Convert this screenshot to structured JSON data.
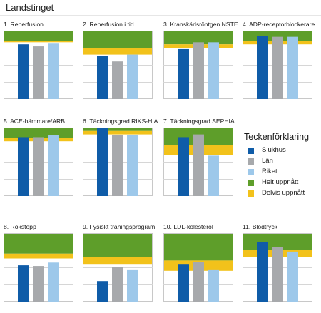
{
  "page": {
    "title": "Landstinget"
  },
  "legend": {
    "title": "Teckenförklaring",
    "items": [
      {
        "label": "Sjukhus",
        "color": "#0f5ca8"
      },
      {
        "label": "Län",
        "color": "#a7a9ac"
      },
      {
        "label": "Riket",
        "color": "#9dc8ea"
      },
      {
        "label": "Helt uppnått",
        "color": "#5e9e2a"
      },
      {
        "label": "Delvis uppnått",
        "color": "#f2c21b"
      }
    ]
  },
  "chart_data": [
    {
      "type": "bar",
      "title": "1. Reperfusion",
      "categories": [
        "Sjukhus",
        "Län",
        "Riket"
      ],
      "values": [
        80,
        77,
        81
      ],
      "ylim": [
        0,
        100
      ],
      "targets": {
        "partial_from": 83,
        "full_from": 85
      }
    },
    {
      "type": "bar",
      "title": "2. Reperfusion i tid",
      "categories": [
        "Sjukhus",
        "Län",
        "Riket"
      ],
      "values": [
        63,
        55,
        65
      ],
      "ylim": [
        0,
        100
      ],
      "targets": {
        "partial_from": 65,
        "full_from": 75
      }
    },
    {
      "type": "bar",
      "title": "3. Kranskärlsröntgen NSTE",
      "categories": [
        "Sjukhus",
        "Län",
        "Riket"
      ],
      "values": [
        73,
        83,
        83
      ],
      "ylim": [
        0,
        100
      ],
      "targets": {
        "partial_from": 75,
        "full_from": 80
      }
    },
    {
      "type": "bar",
      "title": "4. ADP-receptorblockerare",
      "categories": [
        "Sjukhus",
        "Län",
        "Riket"
      ],
      "values": [
        92,
        91,
        91
      ],
      "ylim": [
        0,
        100
      ],
      "targets": {
        "partial_from": 80,
        "full_from": 85
      }
    },
    {
      "type": "bar",
      "title": "5. ACE-hämmare/ARB",
      "categories": [
        "Sjukhus",
        "Län",
        "Riket"
      ],
      "values": [
        86,
        86,
        89
      ],
      "ylim": [
        0,
        100
      ],
      "targets": {
        "partial_from": 80,
        "full_from": 85
      }
    },
    {
      "type": "bar",
      "title": "6. Täckningsgrad RIKS-HIA",
      "categories": [
        "Sjukhus",
        "Län",
        "Riket"
      ],
      "values": [
        100,
        89,
        89
      ],
      "ylim": [
        0,
        100
      ],
      "targets": {
        "partial_from": 90,
        "full_from": 95
      }
    },
    {
      "type": "bar",
      "title": "7. Täckningsgrad SEPHIA",
      "categories": [
        "Sjukhus",
        "Län",
        "Riket"
      ],
      "values": [
        86,
        90,
        59
      ],
      "ylim": [
        0,
        100
      ],
      "targets": {
        "partial_from": 60,
        "full_from": 75
      }
    },
    {
      "type": "bar",
      "title": "8. Rökstopp",
      "categories": [
        "Sjukhus",
        "Län",
        "Riket"
      ],
      "values": [
        53,
        52,
        57
      ],
      "ylim": [
        0,
        100
      ],
      "targets": {
        "partial_from": 63,
        "full_from": 70
      }
    },
    {
      "type": "bar",
      "title": "9. Fysiskt träningsprogram",
      "categories": [
        "Sjukhus",
        "Län",
        "Riket"
      ],
      "values": [
        30,
        50,
        47
      ],
      "ylim": [
        0,
        100
      ],
      "targets": {
        "partial_from": 55,
        "full_from": 65
      }
    },
    {
      "type": "bar",
      "title": "10. LDL-kolesterol",
      "categories": [
        "Sjukhus",
        "Län",
        "Riket"
      ],
      "values": [
        55,
        58,
        47
      ],
      "ylim": [
        0,
        100
      ],
      "targets": {
        "partial_from": 45,
        "full_from": 60
      }
    },
    {
      "type": "bar",
      "title": "11. Blodtryck",
      "categories": [
        "Sjukhus",
        "Län",
        "Riket"
      ],
      "values": [
        87,
        80,
        73
      ],
      "ylim": [
        0,
        100
      ],
      "targets": {
        "partial_from": 65,
        "full_from": 75
      }
    }
  ]
}
